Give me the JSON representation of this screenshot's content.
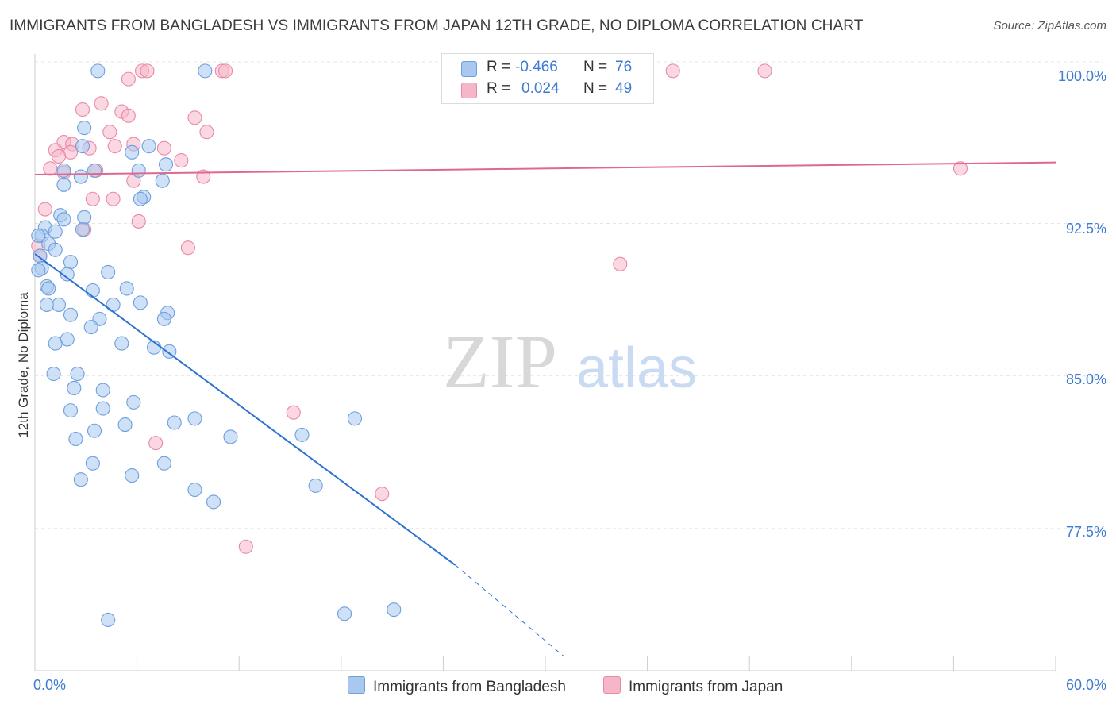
{
  "header": {
    "title": "IMMIGRANTS FROM BANGLADESH VS IMMIGRANTS FROM JAPAN 12TH GRADE, NO DIPLOMA CORRELATION CHART",
    "source": "Source: ZipAtlas.com"
  },
  "watermark": {
    "zip": "ZIP",
    "atlas": "atlas"
  },
  "legend": {
    "rows": [
      {
        "r_label": "R =",
        "r_value": "-0.466",
        "n_label": "N =",
        "n_value": "76",
        "color": "#a8c8f0"
      },
      {
        "r_label": "R =",
        "r_value": "0.024",
        "n_label": "N =",
        "n_value": "49",
        "color": "#f5b6c8"
      }
    ]
  },
  "colors": {
    "blue_fill": "#a8c8f0",
    "blue_stroke": "#6e9fdc",
    "blue_line": "#2f72d0",
    "pink_fill": "#f5b6c8",
    "pink_stroke": "#e88aa6",
    "pink_line": "#e06890",
    "axis_text": "#3d7bd4",
    "grid": "#e6e6e6"
  },
  "chart_data": {
    "type": "scatter",
    "title": "IMMIGRANTS FROM BANGLADESH VS IMMIGRANTS FROM JAPAN 12TH GRADE, NO DIPLOMA CORRELATION CHART",
    "xlabel": "",
    "ylabel": "12th Grade, No Diploma",
    "xlim": [
      0,
      60
    ],
    "ylim": [
      70.5,
      100.6
    ],
    "x_tick_labels": [
      "0.0%",
      "60.0%"
    ],
    "y_ticks": [
      77.5,
      85.0,
      92.5,
      100.0
    ],
    "y_tick_labels": [
      "77.5%",
      "85.0%",
      "92.5%",
      "100.0%"
    ],
    "grid": true,
    "legend_position": "bottom",
    "series": [
      {
        "name": "Immigrants from Bangladesh",
        "color": "#a8c8f0",
        "points": [
          [
            3.7,
            100.0
          ],
          [
            10.0,
            100.0
          ],
          [
            2.9,
            97.2
          ],
          [
            2.8,
            96.3
          ],
          [
            5.7,
            96.0
          ],
          [
            6.7,
            96.3
          ],
          [
            1.7,
            95.1
          ],
          [
            3.5,
            95.1
          ],
          [
            6.1,
            95.1
          ],
          [
            2.7,
            94.8
          ],
          [
            7.7,
            95.4
          ],
          [
            1.7,
            94.4
          ],
          [
            7.5,
            94.6
          ],
          [
            6.4,
            93.8
          ],
          [
            6.2,
            93.7
          ],
          [
            1.5,
            92.9
          ],
          [
            1.7,
            92.7
          ],
          [
            2.9,
            92.8
          ],
          [
            0.6,
            92.3
          ],
          [
            1.2,
            92.1
          ],
          [
            0.4,
            91.9
          ],
          [
            0.2,
            91.9
          ],
          [
            0.8,
            91.5
          ],
          [
            2.8,
            92.2
          ],
          [
            1.2,
            91.2
          ],
          [
            0.3,
            90.9
          ],
          [
            2.1,
            90.6
          ],
          [
            0.4,
            90.3
          ],
          [
            0.2,
            90.2
          ],
          [
            1.9,
            90.0
          ],
          [
            4.3,
            90.1
          ],
          [
            0.7,
            89.4
          ],
          [
            0.8,
            89.3
          ],
          [
            3.4,
            89.2
          ],
          [
            5.4,
            89.3
          ],
          [
            0.7,
            88.5
          ],
          [
            1.4,
            88.5
          ],
          [
            4.6,
            88.5
          ],
          [
            6.2,
            88.6
          ],
          [
            2.1,
            88.0
          ],
          [
            7.8,
            88.1
          ],
          [
            3.8,
            87.8
          ],
          [
            7.6,
            87.8
          ],
          [
            3.3,
            87.4
          ],
          [
            1.9,
            86.8
          ],
          [
            1.2,
            86.6
          ],
          [
            5.1,
            86.6
          ],
          [
            7.0,
            86.4
          ],
          [
            7.9,
            86.2
          ],
          [
            1.1,
            85.1
          ],
          [
            2.5,
            85.1
          ],
          [
            2.3,
            84.4
          ],
          [
            4.0,
            84.3
          ],
          [
            5.8,
            83.7
          ],
          [
            2.1,
            83.3
          ],
          [
            4.0,
            83.4
          ],
          [
            9.4,
            82.9
          ],
          [
            8.2,
            82.7
          ],
          [
            5.3,
            82.6
          ],
          [
            3.5,
            82.3
          ],
          [
            2.4,
            81.9
          ],
          [
            11.5,
            82.0
          ],
          [
            15.7,
            82.1
          ],
          [
            18.8,
            82.9
          ],
          [
            3.4,
            80.7
          ],
          [
            7.6,
            80.7
          ],
          [
            5.7,
            80.1
          ],
          [
            2.7,
            79.9
          ],
          [
            9.4,
            79.4
          ],
          [
            16.5,
            79.6
          ],
          [
            10.5,
            78.8
          ],
          [
            18.2,
            73.3
          ],
          [
            21.1,
            73.5
          ],
          [
            4.3,
            73.0
          ]
        ]
      },
      {
        "name": "Immigrants from Japan",
        "color": "#f5b6c8",
        "points": [
          [
            6.3,
            100.0
          ],
          [
            6.6,
            100.0
          ],
          [
            11.0,
            100.0
          ],
          [
            11.2,
            100.0
          ],
          [
            28.3,
            100.0
          ],
          [
            31.5,
            100.0
          ],
          [
            37.5,
            100.0
          ],
          [
            42.9,
            100.0
          ],
          [
            5.5,
            99.6
          ],
          [
            3.9,
            98.4
          ],
          [
            2.8,
            98.1
          ],
          [
            5.1,
            98.0
          ],
          [
            5.5,
            97.8
          ],
          [
            9.4,
            97.7
          ],
          [
            4.4,
            97.0
          ],
          [
            10.1,
            97.0
          ],
          [
            1.7,
            96.5
          ],
          [
            2.2,
            96.4
          ],
          [
            5.8,
            96.4
          ],
          [
            7.6,
            96.2
          ],
          [
            4.7,
            96.3
          ],
          [
            3.2,
            96.2
          ],
          [
            1.2,
            96.1
          ],
          [
            2.1,
            96.0
          ],
          [
            1.4,
            95.8
          ],
          [
            8.6,
            95.6
          ],
          [
            0.9,
            95.2
          ],
          [
            1.7,
            95.0
          ],
          [
            3.6,
            95.1
          ],
          [
            9.9,
            94.8
          ],
          [
            5.8,
            94.6
          ],
          [
            54.4,
            95.2
          ],
          [
            3.4,
            93.7
          ],
          [
            4.6,
            93.7
          ],
          [
            0.6,
            93.2
          ],
          [
            6.1,
            92.6
          ],
          [
            2.9,
            92.2
          ],
          [
            0.2,
            91.4
          ],
          [
            9.0,
            91.3
          ],
          [
            0.3,
            90.9
          ],
          [
            34.4,
            90.5
          ],
          [
            15.2,
            83.2
          ],
          [
            7.1,
            81.7
          ],
          [
            20.4,
            79.2
          ],
          [
            12.4,
            76.6
          ]
        ]
      }
    ],
    "trendlines": [
      {
        "series": "Immigrants from Bangladesh",
        "x": [
          0,
          24.7
        ],
        "y": [
          91.0,
          75.7
        ],
        "dashed_to": [
          31.1,
          71.2
        ]
      },
      {
        "series": "Immigrants from Japan",
        "x": [
          0,
          60
        ],
        "y": [
          94.9,
          95.5
        ]
      }
    ]
  }
}
